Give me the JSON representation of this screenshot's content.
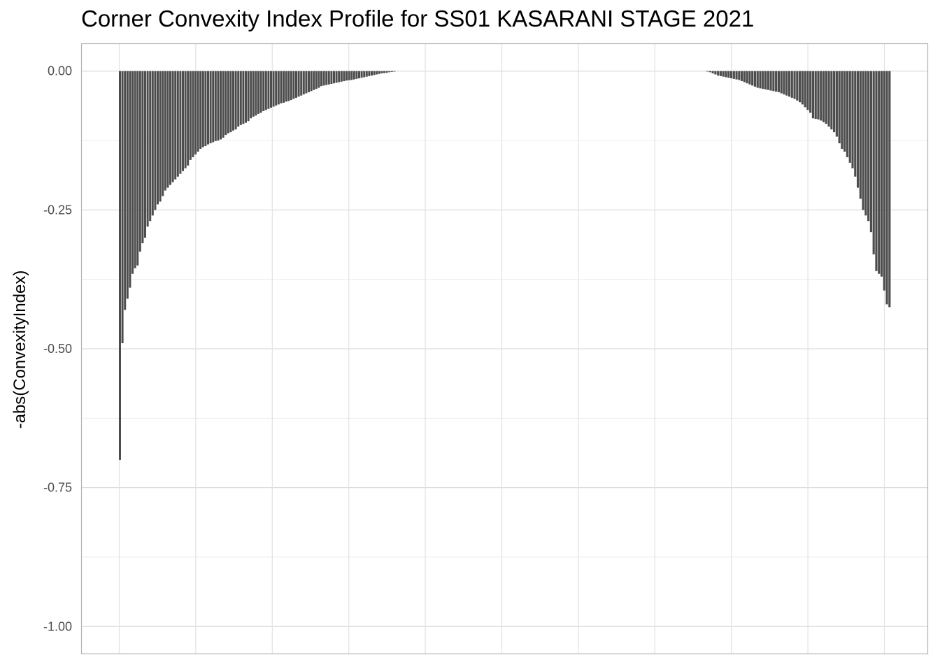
{
  "chart_data": {
    "type": "bar",
    "title": "Corner Convexity Index Profile for SS01 KASARANI STAGE 2021",
    "xlabel": "",
    "ylabel": "-abs(ConvexityIndex)",
    "ylim": [
      -1.05,
      0.05
    ],
    "yticks": [
      {
        "value": 0.0,
        "label": "0.00"
      },
      {
        "value": -0.25,
        "label": "-0.25"
      },
      {
        "value": -0.5,
        "label": "-0.50"
      },
      {
        "value": -0.75,
        "label": "-0.75"
      },
      {
        "value": -1.0,
        "label": "-1.00"
      }
    ],
    "x_tick_labels_shown": false,
    "grid": true,
    "bar_color": "#4d4d4d",
    "series": [
      {
        "segment": "start",
        "values": [
          -0.7,
          -0.49,
          -0.43,
          -0.41,
          -0.39,
          -0.365,
          -0.355,
          -0.35,
          -0.325,
          -0.31,
          -0.3,
          -0.28,
          -0.27,
          -0.26,
          -0.25,
          -0.24,
          -0.235,
          -0.225,
          -0.215,
          -0.21,
          -0.205,
          -0.2,
          -0.195,
          -0.19,
          -0.185,
          -0.18,
          -0.175,
          -0.17,
          -0.16,
          -0.155,
          -0.15,
          -0.145,
          -0.14,
          -0.137,
          -0.135,
          -0.132,
          -0.13,
          -0.128,
          -0.126,
          -0.125,
          -0.123,
          -0.12,
          -0.115,
          -0.112,
          -0.11,
          -0.107,
          -0.105,
          -0.1,
          -0.097,
          -0.095,
          -0.093,
          -0.09,
          -0.085,
          -0.082,
          -0.08,
          -0.077,
          -0.075,
          -0.072,
          -0.07,
          -0.068,
          -0.066,
          -0.064,
          -0.062,
          -0.06,
          -0.058,
          -0.057,
          -0.055,
          -0.054,
          -0.052,
          -0.05,
          -0.048,
          -0.046,
          -0.044,
          -0.042,
          -0.04,
          -0.038,
          -0.036,
          -0.034,
          -0.032,
          -0.03,
          -0.027,
          -0.026,
          -0.025,
          -0.024,
          -0.023,
          -0.022,
          -0.021,
          -0.02,
          -0.019,
          -0.018,
          -0.017,
          -0.0165,
          -0.016,
          -0.015,
          -0.014,
          -0.013,
          -0.012,
          -0.011,
          -0.01,
          -0.009,
          -0.008,
          -0.007,
          -0.006,
          -0.005,
          -0.004,
          -0.0035,
          -0.003,
          -0.002,
          -0.0015,
          -0.001
        ]
      },
      {
        "segment": "end",
        "values": [
          -0.001,
          -0.002,
          -0.004,
          -0.006,
          -0.008,
          -0.009,
          -0.01,
          -0.011,
          -0.012,
          -0.013,
          -0.014,
          -0.015,
          -0.016,
          -0.018,
          -0.02,
          -0.022,
          -0.024,
          -0.026,
          -0.028,
          -0.03,
          -0.031,
          -0.032,
          -0.033,
          -0.034,
          -0.035,
          -0.036,
          -0.037,
          -0.038,
          -0.04,
          -0.042,
          -0.044,
          -0.046,
          -0.048,
          -0.05,
          -0.053,
          -0.056,
          -0.06,
          -0.065,
          -0.07,
          -0.075,
          -0.085,
          -0.086,
          -0.087,
          -0.089,
          -0.092,
          -0.095,
          -0.1,
          -0.105,
          -0.11,
          -0.118,
          -0.13,
          -0.14,
          -0.145,
          -0.155,
          -0.165,
          -0.175,
          -0.19,
          -0.21,
          -0.23,
          -0.25,
          -0.26,
          -0.27,
          -0.29,
          -0.33,
          -0.36,
          -0.365,
          -0.37,
          -0.395,
          -0.42,
          -0.425
        ]
      }
    ]
  }
}
